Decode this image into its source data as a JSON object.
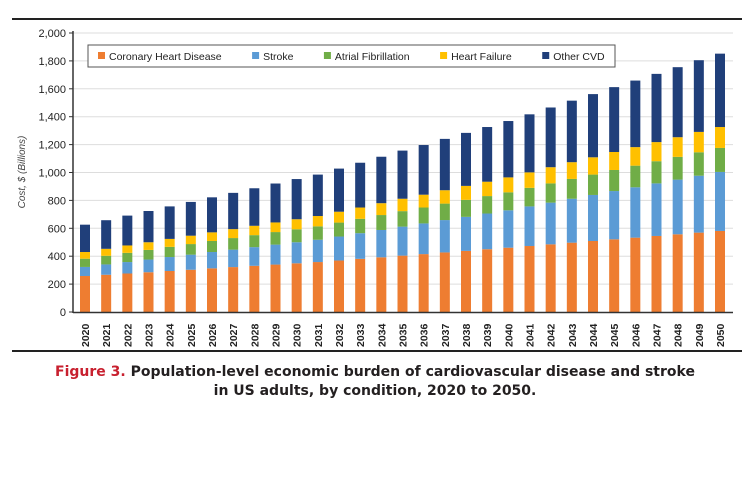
{
  "chart_data": {
    "type": "bar",
    "stacked": true,
    "title": "",
    "xlabel": "",
    "ylabel": "Cost, $ (Billions)",
    "ylim": [
      0,
      2000
    ],
    "yticks": [
      "0",
      "200",
      "400",
      "600",
      "800",
      "1,000",
      "1,200",
      "1,400",
      "1,600",
      "1,800",
      "2,000"
    ],
    "grid": true,
    "legend_position": "top",
    "categories": [
      "2020",
      "2021",
      "2022",
      "2023",
      "2024",
      "2025",
      "2026",
      "2027",
      "2028",
      "2029",
      "2030",
      "2031",
      "2032",
      "2033",
      "2034",
      "2035",
      "2036",
      "2037",
      "2038",
      "2039",
      "2040",
      "2041",
      "2042",
      "2043",
      "2044",
      "2045",
      "2046",
      "2047",
      "2048",
      "2049",
      "2050"
    ],
    "series": [
      {
        "name": "Coronary Heart Disease",
        "color": "#ee7d31",
        "values": [
          258,
          267,
          276,
          285,
          294,
          303,
          313,
          322,
          331,
          340,
          349,
          358,
          369,
          381,
          392,
          404,
          415,
          427,
          438,
          450,
          461,
          473,
          485,
          497,
          509,
          521,
          533,
          545,
          557,
          569,
          581
        ]
      },
      {
        "name": "Stroke",
        "color": "#5b9bd5",
        "values": [
          65,
          74,
          82,
          91,
          100,
          108,
          117,
          125,
          134,
          143,
          151,
          160,
          172,
          184,
          196,
          208,
          220,
          232,
          244,
          256,
          268,
          284,
          299,
          315,
          330,
          346,
          361,
          377,
          392,
          408,
          423
        ]
      },
      {
        "name": "Atrial Fibrillation",
        "color": "#70ad47",
        "values": [
          59,
          62,
          66,
          69,
          73,
          76,
          79,
          83,
          86,
          90,
          93,
          96,
          100,
          103,
          107,
          111,
          114,
          118,
          122,
          125,
          129,
          133,
          138,
          142,
          146,
          151,
          155,
          159,
          163,
          168,
          172
        ]
      },
      {
        "name": "Heart Failure",
        "color": "#ffc000",
        "values": [
          48,
          50,
          53,
          55,
          57,
          60,
          62,
          64,
          67,
          69,
          72,
          74,
          78,
          81,
          85,
          89,
          92,
          96,
          100,
          103,
          107,
          111,
          116,
          120,
          124,
          129,
          133,
          137,
          141,
          146,
          150
        ]
      },
      {
        "name": "Other CVD",
        "color": "#203f7a",
        "values": [
          196,
          205,
          214,
          224,
          233,
          242,
          251,
          260,
          269,
          279,
          288,
          297,
          309,
          321,
          333,
          345,
          356,
          368,
          380,
          392,
          404,
          416,
          428,
          441,
          453,
          465,
          477,
          489,
          502,
          514,
          526
        ]
      }
    ]
  },
  "caption": {
    "label": "Figure 3.",
    "line1": "Population-level economic burden of cardiovascular disease and stroke",
    "line2": "in US adults, by condition, 2020 to 2050."
  }
}
